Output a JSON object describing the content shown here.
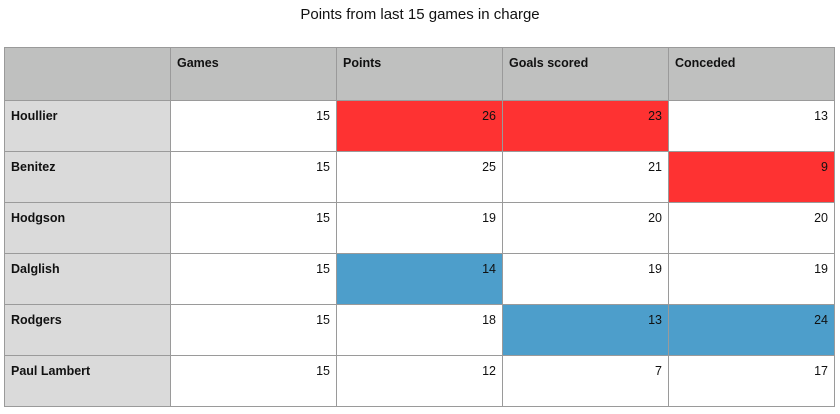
{
  "title": "Points from last 15 games in charge",
  "table": {
    "columns": [
      "Games",
      "Points",
      "Goals scored",
      "Conceded"
    ],
    "rows": [
      {
        "name": "Houllier",
        "cells": [
          15,
          26,
          23,
          13
        ],
        "fills": [
          "#ffffff",
          "#fe3232",
          "#fe3232",
          "#ffffff"
        ]
      },
      {
        "name": "Benitez",
        "cells": [
          15,
          25,
          21,
          9
        ],
        "fills": [
          "#ffffff",
          "#ffffff",
          "#ffffff",
          "#fe3232"
        ]
      },
      {
        "name": "Hodgson",
        "cells": [
          15,
          19,
          20,
          20
        ],
        "fills": [
          "#ffffff",
          "#ffffff",
          "#ffffff",
          "#ffffff"
        ]
      },
      {
        "name": "Dalglish",
        "cells": [
          15,
          14,
          19,
          19
        ],
        "fills": [
          "#ffffff",
          "#4d9ecb",
          "#ffffff",
          "#ffffff"
        ]
      },
      {
        "name": "Rodgers",
        "cells": [
          15,
          18,
          13,
          24
        ],
        "fills": [
          "#ffffff",
          "#ffffff",
          "#4d9ecb",
          "#4d9ecb"
        ]
      },
      {
        "name": "Paul Lambert",
        "cells": [
          15,
          12,
          7,
          17
        ],
        "fills": [
          "#ffffff",
          "#ffffff",
          "#ffffff",
          "#ffffff"
        ]
      }
    ]
  }
}
